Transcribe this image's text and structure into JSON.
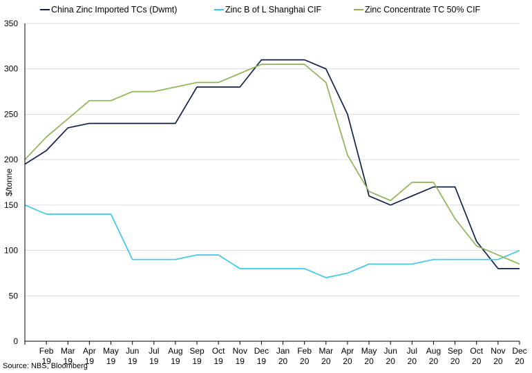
{
  "chart_data": {
    "type": "line",
    "ylabel": "$/tonne",
    "ylim": [
      0,
      350
    ],
    "yticks": [
      0,
      50,
      100,
      150,
      200,
      250,
      300,
      350
    ],
    "grid": true,
    "legend_position": "top",
    "categories": [
      {
        "top": "Feb",
        "bottom": "19"
      },
      {
        "top": "Mar",
        "bottom": "19"
      },
      {
        "top": "Apr",
        "bottom": "19"
      },
      {
        "top": "May",
        "bottom": "19"
      },
      {
        "top": "Jun",
        "bottom": "19"
      },
      {
        "top": "Jul",
        "bottom": "19"
      },
      {
        "top": "Aug",
        "bottom": "19"
      },
      {
        "top": "Sep",
        "bottom": "19"
      },
      {
        "top": "Oct",
        "bottom": "19"
      },
      {
        "top": "Nov",
        "bottom": "19"
      },
      {
        "top": "Dec",
        "bottom": "19"
      },
      {
        "top": "Jan",
        "bottom": "20"
      },
      {
        "top": "Feb",
        "bottom": "20"
      },
      {
        "top": "Mar",
        "bottom": "20"
      },
      {
        "top": "Apr",
        "bottom": "20"
      },
      {
        "top": "May",
        "bottom": "20"
      },
      {
        "top": "Jun",
        "bottom": "20"
      },
      {
        "top": "Jul",
        "bottom": "20"
      },
      {
        "top": "Aug",
        "bottom": "20"
      },
      {
        "top": "Sep",
        "bottom": "20"
      },
      {
        "top": "Oct",
        "bottom": "20"
      },
      {
        "top": "Nov",
        "bottom": "20"
      },
      {
        "top": "Dec",
        "bottom": "20"
      }
    ],
    "series": [
      {
        "name": "China Zinc Imported TCs (Dwmt)",
        "color": "#0f2147",
        "start": 195,
        "values": [
          210,
          235,
          240,
          240,
          240,
          240,
          240,
          280,
          280,
          280,
          310,
          310,
          310,
          300,
          250,
          160,
          150,
          160,
          170,
          170,
          110,
          80,
          80
        ]
      },
      {
        "name": "Zinc B of L Shanghai CIF",
        "color": "#3cc8ee",
        "start": 150,
        "values": [
          140,
          140,
          140,
          140,
          90,
          90,
          90,
          95,
          95,
          80,
          80,
          80,
          80,
          70,
          75,
          85,
          85,
          85,
          90,
          90,
          90,
          90,
          100
        ]
      },
      {
        "name": "Zinc Concentrate TC 50% CIF",
        "color": "#8db356",
        "start": 200,
        "values": [
          225,
          245,
          265,
          265,
          275,
          275,
          280,
          285,
          285,
          295,
          305,
          305,
          305,
          285,
          205,
          165,
          155,
          175,
          175,
          135,
          105,
          95,
          85
        ]
      }
    ]
  },
  "source": "Source: NBS, Bloomberg"
}
